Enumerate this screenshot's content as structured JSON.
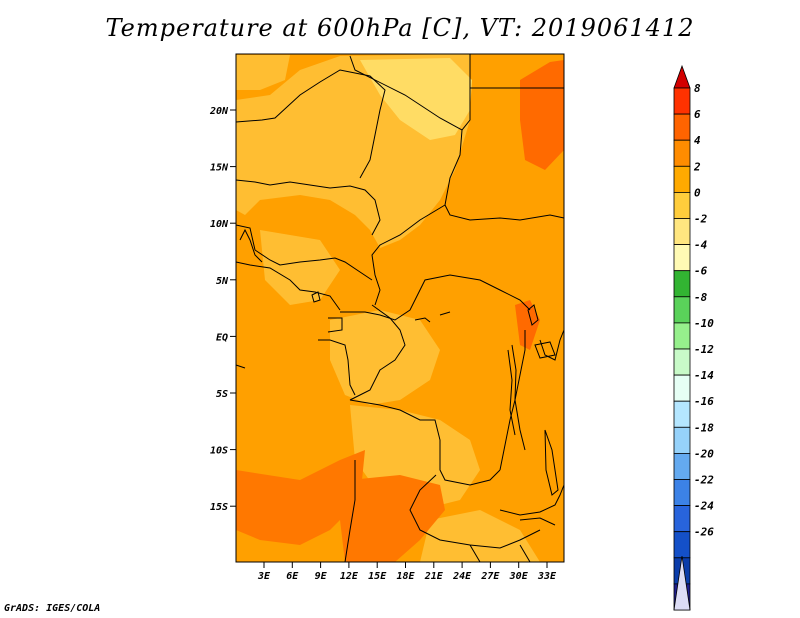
{
  "title": "Temperature at 600hPa [C], VT: 2019061412",
  "footer": "GrADS: IGES/COLA",
  "map": {
    "lat_labels": [
      "20N",
      "15N",
      "10N",
      "5N",
      "EQ",
      "5S",
      "10S",
      "15S"
    ],
    "lon_labels": [
      "3E",
      "6E",
      "9E",
      "12E",
      "15E",
      "18E",
      "21E",
      "24E",
      "27E",
      "30E",
      "33E"
    ],
    "colors": {
      "base": "#ffa000",
      "warm": "#ff7800",
      "hot": "#ff5000",
      "cool": "#ffbe32",
      "cooler": "#ffdc64",
      "border": "#000000"
    }
  },
  "colorbar": {
    "levels": [
      "8",
      "6",
      "4",
      "2",
      "0",
      "-2",
      "-4",
      "-6",
      "-8",
      "-10",
      "-12",
      "-14",
      "-16",
      "-18",
      "-20",
      "-22",
      "-24",
      "-26"
    ],
    "colors": [
      "#d20000",
      "#ff3200",
      "#ff6400",
      "#ff8c00",
      "#ffaa00",
      "#ffcd3c",
      "#ffe680",
      "#fffab4",
      "#32b432",
      "#5ad25a",
      "#96f08c",
      "#c8fac8",
      "#e6fff5",
      "#b4e6ff",
      "#96d2fa",
      "#64aaf0",
      "#3c82e6",
      "#2864dc",
      "#1450c8",
      "#0a3caa",
      "#1e1e8c",
      "#dcdcf5"
    ]
  }
}
